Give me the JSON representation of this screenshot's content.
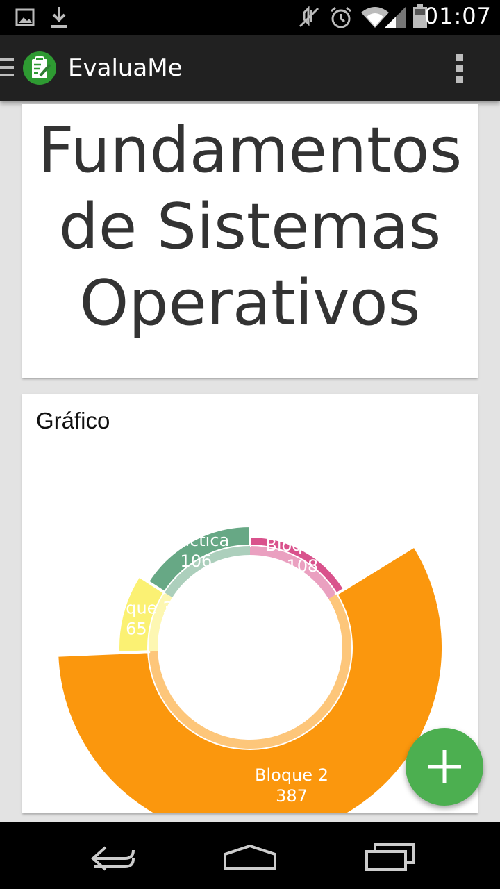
{
  "status_bar": {
    "time": "01:07",
    "icons": [
      "image-icon",
      "download-icon",
      "mute-icon",
      "alarm-icon",
      "wifi-icon",
      "signal-icon",
      "battery-icon"
    ]
  },
  "action_bar": {
    "app_title": "EvaluaMe",
    "icons": [
      "drawer-icon",
      "app-logo-icon",
      "overflow-menu-icon"
    ]
  },
  "course": {
    "title_lines": [
      "Fundamentos",
      "de Sistemas",
      "Operativos"
    ]
  },
  "chart_section": {
    "heading": "Gráfico"
  },
  "chart_data": {
    "type": "pie",
    "variant": "donut",
    "title": "Gráfico",
    "categories": [
      "Bloque 1",
      "Bloque 2",
      "Bloque 3",
      "Práctica"
    ],
    "values": [
      108,
      387,
      65,
      106
    ],
    "colors": [
      "#d9528c",
      "#fb970d",
      "#fbf173",
      "#67a885"
    ],
    "label_color": "#ffffff"
  },
  "fab": {
    "icon": "plus-icon"
  },
  "nav_bar": {
    "icons": [
      "back-icon",
      "home-icon",
      "recents-icon"
    ]
  }
}
